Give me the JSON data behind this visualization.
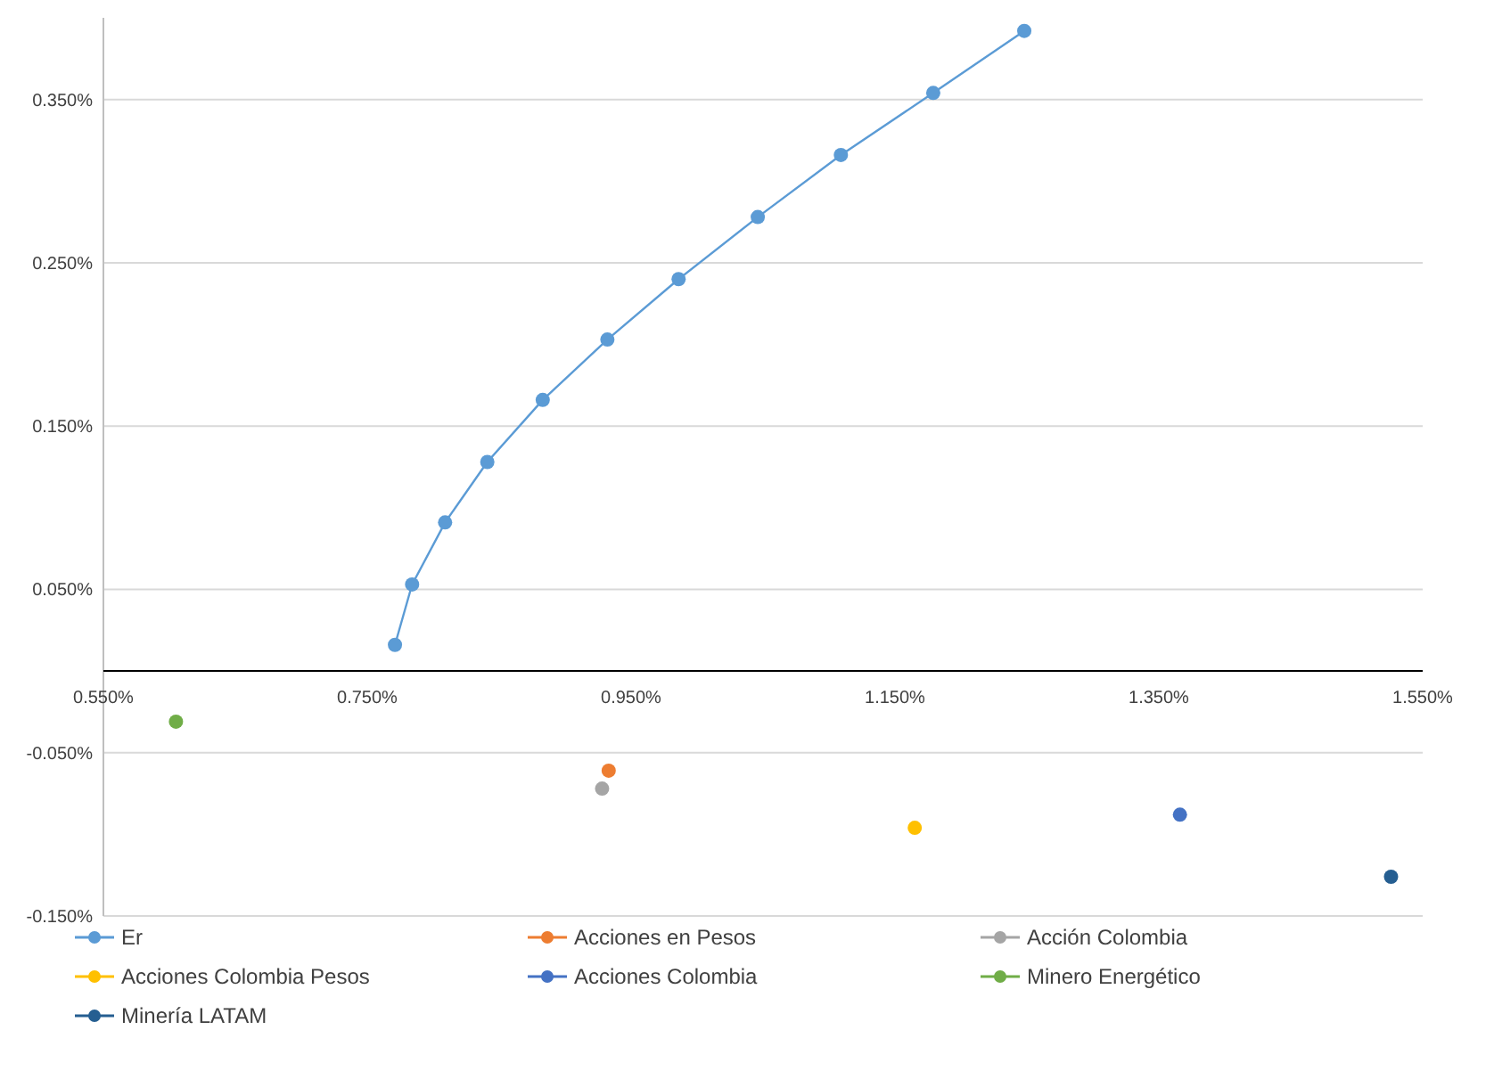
{
  "chart_data": {
    "type": "scatter",
    "xlim": [
      0.55,
      1.55
    ],
    "ylim": [
      -0.15,
      0.4
    ],
    "xticks": [
      {
        "value": 0.55,
        "label": "0.550%"
      },
      {
        "value": 0.75,
        "label": "0.750%"
      },
      {
        "value": 0.95,
        "label": "0.950%"
      },
      {
        "value": 1.15,
        "label": "1.150%"
      },
      {
        "value": 1.35,
        "label": "1.350%"
      },
      {
        "value": 1.55,
        "label": "1.550%"
      }
    ],
    "yticks": [
      {
        "value": -0.15,
        "label": "-0.150%"
      },
      {
        "value": -0.05,
        "label": "-0.050%"
      },
      {
        "value": 0.05,
        "label": "0.050%"
      },
      {
        "value": 0.15,
        "label": "0.150%"
      },
      {
        "value": 0.25,
        "label": "0.250%"
      },
      {
        "value": 0.35,
        "label": "0.350%"
      }
    ],
    "grid": "y",
    "legend": "bottom",
    "marker": "circle",
    "line_style": "solid",
    "series": [
      {
        "name": "Er",
        "type": "line",
        "color": "#5b9bd5",
        "x": [
          0.771,
          0.784,
          0.809,
          0.841,
          0.883,
          0.932,
          0.986,
          1.046,
          1.109,
          1.179,
          1.248
        ],
        "values": [
          0.016,
          0.053,
          0.091,
          0.128,
          0.166,
          0.203,
          0.24,
          0.278,
          0.316,
          0.354,
          0.392
        ]
      },
      {
        "name": "Acciones en Pesos",
        "color": "#ed7d31",
        "x": [
          0.933
        ],
        "values": [
          -0.061
        ]
      },
      {
        "name": "Acción Colombia",
        "color": "#a5a5a5",
        "x": [
          0.928
        ],
        "values": [
          -0.072
        ]
      },
      {
        "name": "Acciones Colombia Pesos",
        "color": "#ffc000",
        "x": [
          1.165
        ],
        "values": [
          -0.096
        ]
      },
      {
        "name": "Acciones Colombia",
        "color": "#4472c4",
        "x": [
          1.366
        ],
        "values": [
          -0.088
        ]
      },
      {
        "name": "Minero Energético",
        "color": "#70ad47",
        "x": [
          0.605
        ],
        "values": [
          -0.031
        ]
      },
      {
        "name": "Minería LATAM",
        "color": "#255e91",
        "x": [
          1.526
        ],
        "values": [
          -0.126
        ]
      }
    ]
  }
}
